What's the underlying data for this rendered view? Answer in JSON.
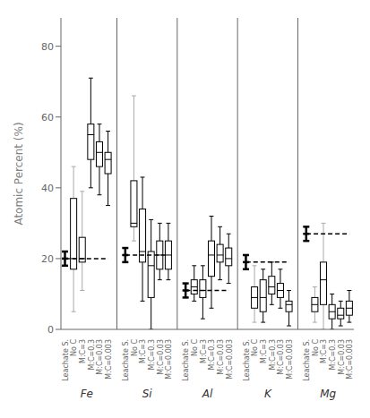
{
  "chart_data": {
    "type": "box",
    "ylabel": "Atomic Percent (%)",
    "ylim": [
      0,
      88
    ],
    "yticks": [
      0,
      20,
      40,
      60,
      80
    ],
    "categories": [
      "Leachate S.",
      "No C",
      "M:C=3",
      "M:C=0.3",
      "M:C=0.03",
      "M:C=0.003"
    ],
    "groups": [
      {
        "name": "Fe",
        "reference": 20,
        "line_style": "dashed",
        "boxes": [
          {
            "type": "range",
            "median": 20,
            "whislo": 18,
            "whishi": 22,
            "color": "#000000"
          },
          {
            "type": "box",
            "median": 20,
            "q1": 17,
            "q3": 37,
            "whislo": 5,
            "whishi": 46,
            "color": "#aaaaaa"
          },
          {
            "type": "box",
            "median": 20,
            "q1": 19,
            "q3": 26,
            "whislo": 11,
            "whishi": 39,
            "color": "#aaaaaa"
          },
          {
            "type": "box",
            "median": 55,
            "q1": 48,
            "q3": 58,
            "whislo": 40,
            "whishi": 71,
            "color": "#000000"
          },
          {
            "type": "box",
            "median": 50,
            "q1": 46,
            "q3": 53,
            "whislo": 38,
            "whishi": 58,
            "color": "#000000"
          },
          {
            "type": "box",
            "median": 48,
            "q1": 44,
            "q3": 50,
            "whislo": 35,
            "whishi": 56,
            "color": "#000000"
          }
        ]
      },
      {
        "name": "Si",
        "reference": 21,
        "line_style": "dashed",
        "boxes": [
          {
            "type": "range",
            "median": 21,
            "whislo": 19,
            "whishi": 23,
            "color": "#000000"
          },
          {
            "type": "box",
            "median": 30,
            "q1": 29,
            "q3": 42,
            "whislo": 25,
            "whishi": 66,
            "color": "#aaaaaa"
          },
          {
            "type": "box",
            "median": 22,
            "q1": 19,
            "q3": 34,
            "whislo": 8,
            "whishi": 43,
            "color": "#000000"
          },
          {
            "type": "box",
            "median": 18,
            "q1": 9,
            "q3": 22,
            "whislo": 0,
            "whishi": 31,
            "color": "#000000"
          },
          {
            "type": "box",
            "median": 21,
            "q1": 17,
            "q3": 25,
            "whislo": 14,
            "whishi": 30,
            "color": "#000000"
          },
          {
            "type": "box",
            "median": 21,
            "q1": 17,
            "q3": 25,
            "whislo": 14,
            "whishi": 30,
            "color": "#000000"
          }
        ]
      },
      {
        "name": "Al",
        "reference": 11,
        "line_style": "dashed",
        "boxes": [
          {
            "type": "range",
            "median": 11,
            "whislo": 9,
            "whishi": 13,
            "color": "#000000"
          },
          {
            "type": "box",
            "median": 12,
            "q1": 10,
            "q3": 14,
            "whislo": 8,
            "whishi": 18,
            "color": "#000000"
          },
          {
            "type": "box",
            "median": 11,
            "q1": 9,
            "q3": 14,
            "whislo": 3,
            "whishi": 18,
            "color": "#000000"
          },
          {
            "type": "box",
            "median": 21,
            "q1": 15,
            "q3": 25,
            "whislo": 6,
            "whishi": 32,
            "color": "#000000"
          },
          {
            "type": "box",
            "median": 21,
            "q1": 19,
            "q3": 24,
            "whislo": 14,
            "whishi": 29,
            "color": "#000000"
          },
          {
            "type": "box",
            "median": 20,
            "q1": 18,
            "q3": 23,
            "whislo": 13,
            "whishi": 27,
            "color": "#000000"
          }
        ]
      },
      {
        "name": "K",
        "reference": 19,
        "line_style": "dashed",
        "boxes": [
          {
            "type": "range",
            "median": 19,
            "whislo": 17,
            "whishi": 21,
            "color": "#000000"
          },
          {
            "type": "box",
            "median": 9,
            "q1": 6,
            "q3": 12,
            "whislo": 2,
            "whishi": 18,
            "color": "#aaaaaa"
          },
          {
            "type": "box",
            "median": 9,
            "q1": 5,
            "q3": 14,
            "whislo": 2,
            "whishi": 17,
            "color": "#000000"
          },
          {
            "type": "box",
            "median": 12,
            "q1": 10,
            "q3": 15,
            "whislo": 7,
            "whishi": 19,
            "color": "#000000"
          },
          {
            "type": "box",
            "median": 11,
            "q1": 9,
            "q3": 13,
            "whislo": 6,
            "whishi": 17,
            "color": "#000000"
          },
          {
            "type": "box",
            "median": 7,
            "q1": 5,
            "q3": 8,
            "whislo": 1,
            "whishi": 11,
            "color": "#000000"
          }
        ]
      },
      {
        "name": "Mg",
        "reference": 27,
        "line_style": "dashed",
        "boxes": [
          {
            "type": "range",
            "median": 27,
            "whislo": 25,
            "whishi": 29,
            "color": "#000000"
          },
          {
            "type": "box",
            "median": 7,
            "q1": 5,
            "q3": 9,
            "whislo": 2,
            "whishi": 12,
            "color": "#aaaaaa"
          },
          {
            "type": "box",
            "median": 14,
            "q1": 7,
            "q3": 19,
            "whislo": 0,
            "whishi": 30,
            "color": "#aaaaaa"
          },
          {
            "type": "box",
            "median": 5,
            "q1": 3,
            "q3": 7,
            "whislo": 0,
            "whishi": 10,
            "color": "#000000"
          },
          {
            "type": "box",
            "median": 4,
            "q1": 3,
            "q3": 6,
            "whislo": 1,
            "whishi": 8,
            "color": "#000000"
          },
          {
            "type": "box",
            "median": 6,
            "q1": 4,
            "q3": 8,
            "whislo": 2,
            "whishi": 11,
            "color": "#000000"
          }
        ]
      }
    ]
  }
}
